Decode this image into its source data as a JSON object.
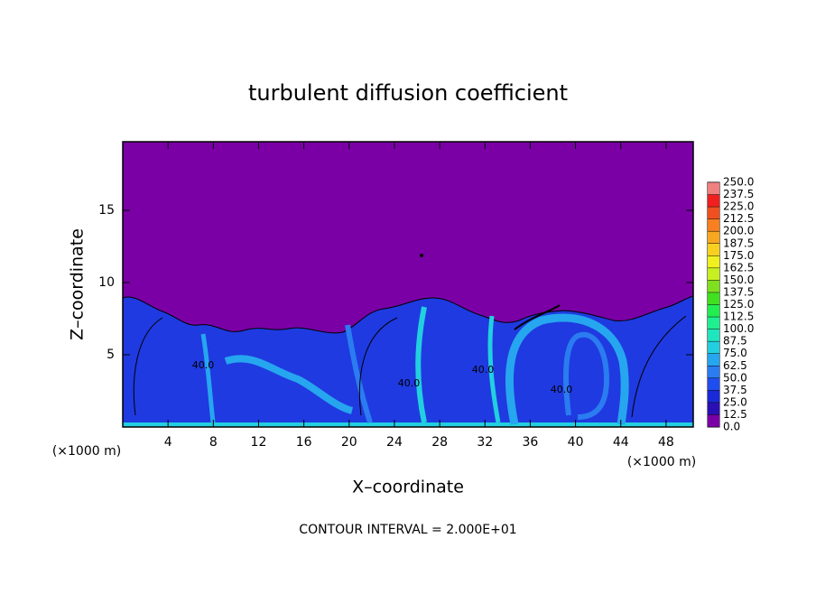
{
  "chart_data": {
    "type": "contour",
    "title": "turbulent diffusion coefficient",
    "x_label": "X–coordinate",
    "y_label": "Z–coordinate",
    "x_unit_left": "(×1000 m)",
    "x_unit_right": "(×1000 m)",
    "footer": "CONTOUR INTERVAL = 2.000E+01",
    "contour_labels": [
      "40.0",
      "40.0",
      "40.0",
      "40.0"
    ],
    "xlim": [
      0,
      50.4
    ],
    "ylim": [
      0,
      19.75
    ],
    "xticks": [
      4,
      8,
      12,
      16,
      20,
      24,
      28,
      32,
      36,
      40,
      44,
      48
    ],
    "yticks": [
      5,
      10,
      15
    ],
    "colorbar": {
      "levels": [
        {
          "value": 0,
          "label": "0.0"
        },
        12.5,
        {
          "value": 25,
          "label": "25.0"
        },
        37.5,
        {
          "value": 50,
          "label": "50.0"
        },
        62.5,
        {
          "value": 75,
          "label": "75.0"
        },
        87.5,
        {
          "value": 100,
          "label": "100.0"
        },
        112.5,
        {
          "value": 125,
          "label": "125.0"
        },
        137.5,
        {
          "value": 150,
          "label": "150.0"
        },
        162.5,
        {
          "value": 175,
          "label": "175.0"
        },
        187.5,
        {
          "value": 200,
          "label": "200.0"
        },
        212.5,
        {
          "value": 225,
          "label": "225.0"
        },
        237.5,
        {
          "value": 250,
          "label": "250.0"
        }
      ],
      "colors": [
        "#7a00a6",
        "#2a10b4",
        "#1a2ad8",
        "#1f4ef0",
        "#2a7cf0",
        "#26a6ef",
        "#22cfe0",
        "#20e6c0",
        "#1ef090",
        "#22ee50",
        "#40e020",
        "#80e020",
        "#c8f020",
        "#f0f020",
        "#f8d020",
        "#f8a820",
        "#f88020",
        "#f05020",
        "#f02020",
        "#f08080"
      ]
    }
  }
}
